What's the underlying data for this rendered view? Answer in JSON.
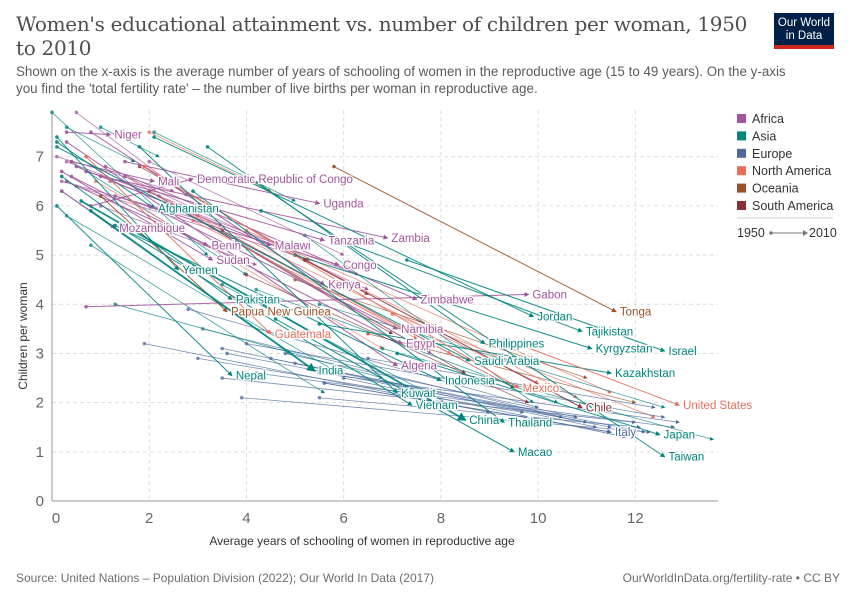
{
  "header": {
    "title": "Women's educational attainment vs. number of children per woman, 1950 to 2010",
    "subtitle": "Shown on the x-axis is the average number of years of schooling of women in the reproductive age (15 to 49 years). On the y-axis you find the 'total fertility rate' – the number of live births per woman in reproductive age.",
    "logo_line1": "Our World",
    "logo_line2": "in Data"
  },
  "footer": {
    "source": "Source: United Nations – Population Division (2022); Our World In Data (2017)",
    "link": "OurWorldInData.org/fertility-rate • CC BY"
  },
  "colors": {
    "Africa": "#a2559c",
    "Asia": "#00847e",
    "Europe": "#4c6a9c",
    "North America": "#e56e5a",
    "Oceania": "#9a5129",
    "South America": "#883039"
  },
  "chart_data": {
    "type": "scatter",
    "variant": "arrow-connected (start year → end year)",
    "title": "Women's educational attainment vs. number of children per woman, 1950 to 2010",
    "xlabel": "Average years of schooling of women in reproductive age",
    "ylabel": "Children per woman",
    "xlim": [
      0,
      13.7
    ],
    "ylim": [
      0,
      7.95
    ],
    "x_ticks": [
      0,
      2,
      4,
      6,
      8,
      10,
      12
    ],
    "y_ticks": [
      0,
      1,
      2,
      3,
      4,
      5,
      6,
      7
    ],
    "grid": true,
    "legend": {
      "position": "right",
      "entries": [
        "Africa",
        "Asia",
        "Europe",
        "North America",
        "Oceania",
        "South America"
      ],
      "time_start": "1950",
      "time_end": "2010"
    },
    "labeled_series": [
      {
        "name": "Niger",
        "region": "Africa",
        "x": [
          0.3,
          1.2
        ],
        "y": [
          7.5,
          7.45
        ]
      },
      {
        "name": "Mali",
        "region": "Africa",
        "x": [
          0.4,
          2.1
        ],
        "y": [
          6.9,
          6.5
        ]
      },
      {
        "name": "Democratic Republic of Congo",
        "region": "Africa",
        "x": [
          0.8,
          2.9
        ],
        "y": [
          6.0,
          6.55
        ]
      },
      {
        "name": "Uganda",
        "region": "Africa",
        "x": [
          1.5,
          5.5
        ],
        "y": [
          6.9,
          6.05
        ]
      },
      {
        "name": "Afghanistan",
        "region": "Asia",
        "x": [
          0.1,
          2.1
        ],
        "y": [
          7.3,
          5.95
        ]
      },
      {
        "name": "Mozambique",
        "region": "Africa",
        "x": [
          0.2,
          1.3
        ],
        "y": [
          6.3,
          5.55
        ]
      },
      {
        "name": "Benin",
        "region": "Africa",
        "x": [
          0.3,
          3.2
        ],
        "y": [
          6.5,
          5.2
        ]
      },
      {
        "name": "Malawi",
        "region": "Africa",
        "x": [
          0.5,
          4.5
        ],
        "y": [
          6.8,
          5.2
        ]
      },
      {
        "name": "Tanzania",
        "region": "Africa",
        "x": [
          0.7,
          5.6
        ],
        "y": [
          6.7,
          5.3
        ]
      },
      {
        "name": "Zambia",
        "region": "Africa",
        "x": [
          1.0,
          6.9
        ],
        "y": [
          6.6,
          5.35
        ]
      },
      {
        "name": "Sudan",
        "region": "Africa",
        "x": [
          0.2,
          3.3
        ],
        "y": [
          6.7,
          4.9
        ]
      },
      {
        "name": "Yemen",
        "region": "Asia",
        "x": [
          0.1,
          2.6
        ],
        "y": [
          7.4,
          4.7
        ]
      },
      {
        "name": "Congo",
        "region": "Africa",
        "x": [
          1.3,
          5.9
        ],
        "y": [
          6.2,
          4.8
        ]
      },
      {
        "name": "Kenya",
        "region": "Africa",
        "x": [
          0.8,
          5.6
        ],
        "y": [
          7.5,
          4.4
        ]
      },
      {
        "name": "Pakistan",
        "region": "Asia",
        "x": [
          0.2,
          3.7
        ],
        "y": [
          6.6,
          4.1
        ]
      },
      {
        "name": "Gabon",
        "region": "Africa",
        "x": [
          0.7,
          9.8
        ],
        "y": [
          3.95,
          4.2
        ]
      },
      {
        "name": "Zimbabwe",
        "region": "Africa",
        "x": [
          1.1,
          7.5
        ],
        "y": [
          6.8,
          4.1
        ]
      },
      {
        "name": "Tonga",
        "region": "Oceania",
        "x": [
          5.8,
          11.6
        ],
        "y": [
          6.8,
          3.85
        ]
      },
      {
        "name": "Papua New Guinea",
        "region": "Oceania",
        "x": [
          1.0,
          3.6
        ],
        "y": [
          6.2,
          3.85
        ]
      },
      {
        "name": "Jordan",
        "region": "Asia",
        "x": [
          2.1,
          9.9
        ],
        "y": [
          7.4,
          3.75
        ]
      },
      {
        "name": "Namibia",
        "region": "Africa",
        "x": [
          2.0,
          7.1
        ],
        "y": [
          6.0,
          3.5
        ]
      },
      {
        "name": "Tajikistan",
        "region": "Asia",
        "x": [
          4.3,
          10.9
        ],
        "y": [
          5.9,
          3.45
        ]
      },
      {
        "name": "Guatemala",
        "region": "North America",
        "x": [
          0.7,
          4.5
        ],
        "y": [
          7.0,
          3.4
        ]
      },
      {
        "name": "Philippines",
        "region": "Asia",
        "x": [
          3.2,
          8.9
        ],
        "y": [
          7.2,
          3.2
        ]
      },
      {
        "name": "Egypt",
        "region": "Africa",
        "x": [
          0.4,
          7.2
        ],
        "y": [
          6.6,
          3.2
        ]
      },
      {
        "name": "Kyrgyzstan",
        "region": "Asia",
        "x": [
          5.0,
          11.1
        ],
        "y": [
          5.0,
          3.1
        ]
      },
      {
        "name": "Israel",
        "region": "Asia",
        "x": [
          7.3,
          12.6
        ],
        "y": [
          4.9,
          3.05
        ]
      },
      {
        "name": "Saudi Arabia",
        "region": "Asia",
        "x": [
          0.1,
          8.6
        ],
        "y": [
          7.2,
          2.85
        ]
      },
      {
        "name": "Algeria",
        "region": "Africa",
        "x": [
          0.3,
          7.1
        ],
        "y": [
          7.3,
          2.75
        ]
      },
      {
        "name": "India",
        "region": "Asia",
        "x": [
          0.8,
          5.4
        ],
        "y": [
          5.9,
          2.65
        ]
      },
      {
        "name": "Kazakhstan",
        "region": "Asia",
        "x": [
          5.5,
          11.5
        ],
        "y": [
          3.6,
          2.6
        ]
      },
      {
        "name": "Nepal",
        "region": "Asia",
        "x": [
          0.1,
          3.7
        ],
        "y": [
          6.0,
          2.55
        ]
      },
      {
        "name": "Indonesia",
        "region": "Asia",
        "x": [
          1.3,
          8.0
        ],
        "y": [
          5.6,
          2.45
        ]
      },
      {
        "name": "Mexico",
        "region": "North America",
        "x": [
          1.9,
          9.6
        ],
        "y": [
          6.8,
          2.3
        ]
      },
      {
        "name": "Kuwait",
        "region": "Asia",
        "x": [
          1.8,
          7.1
        ],
        "y": [
          7.2,
          2.2
        ]
      },
      {
        "name": "United States",
        "region": "North America",
        "x": [
          9.3,
          12.9
        ],
        "y": [
          3.3,
          1.95
        ]
      },
      {
        "name": "Vietnam",
        "region": "Asia",
        "x": [
          1.5,
          7.4
        ],
        "y": [
          5.5,
          1.95
        ]
      },
      {
        "name": "Chile",
        "region": "South America",
        "x": [
          5.2,
          10.9
        ],
        "y": [
          4.9,
          1.9
        ]
      },
      {
        "name": "China",
        "region": "Asia",
        "x": [
          0.6,
          8.5
        ],
        "y": [
          6.1,
          1.65
        ]
      },
      {
        "name": "Thailand",
        "region": "Asia",
        "x": [
          2.9,
          9.3
        ],
        "y": [
          6.3,
          1.6
        ]
      },
      {
        "name": "Italy",
        "region": "Europe",
        "x": [
          5.6,
          11.5
        ],
        "y": [
          2.4,
          1.4
        ]
      },
      {
        "name": "Japan",
        "region": "Asia",
        "x": [
          7.1,
          12.5
        ],
        "y": [
          3.0,
          1.35
        ]
      },
      {
        "name": "Macao",
        "region": "Asia",
        "x": [
          4.6,
          9.5
        ],
        "y": [
          3.7,
          1.0
        ]
      },
      {
        "name": "Taiwan",
        "region": "Asia",
        "x": [
          4.0,
          12.6
        ],
        "y": [
          6.6,
          0.9
        ]
      }
    ],
    "unlabeled_series_note": "Dozens of additional unlabeled country arrows (1950→2010) in the same regional colors fill the plot; representative approximations below.",
    "unlabeled_series": [
      {
        "region": "Asia",
        "x": [
          0.0,
          3.2
        ],
        "y": [
          7.9,
          5.0
        ]
      },
      {
        "region": "Africa",
        "x": [
          0.5,
          2.8
        ],
        "y": [
          7.9,
          6.2
        ]
      },
      {
        "region": "Asia",
        "x": [
          0.3,
          1.7
        ],
        "y": [
          7.6,
          6.9
        ]
      },
      {
        "region": "Asia",
        "x": [
          1.0,
          2.2
        ],
        "y": [
          7.6,
          7.0
        ]
      },
      {
        "region": "North America",
        "x": [
          2.0,
          4.5
        ],
        "y": [
          7.5,
          6.3
        ]
      },
      {
        "region": "Asia",
        "x": [
          2.1,
          5.0
        ],
        "y": [
          7.5,
          6.1
        ]
      },
      {
        "region": "Africa",
        "x": [
          0.1,
          2.5
        ],
        "y": [
          7.0,
          6.3
        ]
      },
      {
        "region": "Africa",
        "x": [
          0.3,
          3.0
        ],
        "y": [
          6.9,
          5.9
        ]
      },
      {
        "region": "Africa",
        "x": [
          0.2,
          3.5
        ],
        "y": [
          6.5,
          5.6
        ]
      },
      {
        "region": "Asia",
        "x": [
          0.4,
          4.0
        ],
        "y": [
          6.9,
          4.6
        ]
      },
      {
        "region": "Asia",
        "x": [
          0.2,
          4.9
        ],
        "y": [
          6.3,
          3.0
        ]
      },
      {
        "region": "Asia",
        "x": [
          0.8,
          5.6
        ],
        "y": [
          5.2,
          2.2
        ]
      },
      {
        "region": "Asia",
        "x": [
          0.3,
          5.9
        ],
        "y": [
          5.8,
          2.6
        ]
      },
      {
        "region": "North America",
        "x": [
          0.9,
          6.8
        ],
        "y": [
          6.5,
          3.1
        ]
      },
      {
        "region": "North America",
        "x": [
          1.5,
          7.5
        ],
        "y": [
          6.6,
          3.3
        ]
      },
      {
        "region": "South America",
        "x": [
          2.0,
          7.0
        ],
        "y": [
          6.3,
          3.4
        ]
      },
      {
        "region": "South America",
        "x": [
          2.5,
          8.5
        ],
        "y": [
          6.0,
          2.6
        ]
      },
      {
        "region": "South America",
        "x": [
          3.5,
          9.5
        ],
        "y": [
          5.5,
          2.3
        ]
      },
      {
        "region": "North America",
        "x": [
          3.0,
          10.0
        ],
        "y": [
          5.8,
          2.4
        ]
      },
      {
        "region": "North America",
        "x": [
          4.0,
          11.5
        ],
        "y": [
          5.5,
          2.2
        ]
      },
      {
        "region": "Oceania",
        "x": [
          5.0,
          11.0
        ],
        "y": [
          4.5,
          2.5
        ]
      },
      {
        "region": "Oceania",
        "x": [
          6.5,
          12.0
        ],
        "y": [
          3.4,
          2.0
        ]
      },
      {
        "region": "North America",
        "x": [
          7.0,
          12.4
        ],
        "y": [
          3.8,
          1.7
        ]
      },
      {
        "region": "Europe",
        "x": [
          1.9,
          9.0
        ],
        "y": [
          3.2,
          1.8
        ]
      },
      {
        "region": "Europe",
        "x": [
          2.8,
          10.0
        ],
        "y": [
          3.9,
          1.9
        ]
      },
      {
        "region": "Europe",
        "x": [
          3.1,
          10.5
        ],
        "y": [
          3.5,
          1.7
        ]
      },
      {
        "region": "Europe",
        "x": [
          3.5,
          11.0
        ],
        "y": [
          3.1,
          1.6
        ]
      },
      {
        "region": "Europe",
        "x": [
          3.6,
          11.5
        ],
        "y": [
          3.0,
          1.5
        ]
      },
      {
        "region": "Europe",
        "x": [
          3.5,
          12.0
        ],
        "y": [
          2.5,
          1.6
        ]
      },
      {
        "region": "Europe",
        "x": [
          3.9,
          12.3
        ],
        "y": [
          2.1,
          1.4
        ]
      },
      {
        "region": "Europe",
        "x": [
          4.0,
          12.6
        ],
        "y": [
          3.2,
          1.7
        ]
      },
      {
        "region": "Europe",
        "x": [
          4.2,
          12.8
        ],
        "y": [
          2.6,
          1.5
        ]
      },
      {
        "region": "Europe",
        "x": [
          4.5,
          11.2
        ],
        "y": [
          2.9,
          1.5
        ]
      },
      {
        "region": "Europe",
        "x": [
          5.0,
          12.2
        ],
        "y": [
          2.8,
          1.4
        ]
      },
      {
        "region": "Europe",
        "x": [
          5.5,
          12.9
        ],
        "y": [
          2.6,
          1.6
        ]
      },
      {
        "region": "Europe",
        "x": [
          6.0,
          11.8
        ],
        "y": [
          2.5,
          1.3
        ]
      },
      {
        "region": "Europe",
        "x": [
          3.0,
          9.7
        ],
        "y": [
          2.9,
          1.8
        ]
      },
      {
        "region": "Europe",
        "x": [
          4.8,
          10.8
        ],
        "y": [
          3.0,
          1.7
        ]
      },
      {
        "region": "Europe",
        "x": [
          5.5,
          12.1
        ],
        "y": [
          2.1,
          1.5
        ]
      },
      {
        "region": "Europe",
        "x": [
          6.5,
          12.4
        ],
        "y": [
          2.9,
          1.9
        ]
      },
      {
        "region": "Asia",
        "x": [
          6.8,
          13.6
        ],
        "y": [
          3.1,
          1.25
        ]
      },
      {
        "region": "Asia",
        "x": [
          5.2,
          9.9
        ],
        "y": [
          5.4,
          2.0
        ]
      },
      {
        "region": "Asia",
        "x": [
          4.2,
          10.4
        ],
        "y": [
          4.3,
          2.0
        ]
      },
      {
        "region": "Asia",
        "x": [
          3.5,
          8.3
        ],
        "y": [
          4.4,
          1.9
        ]
      },
      {
        "region": "Asia",
        "x": [
          1.3,
          6.8
        ],
        "y": [
          4.0,
          2.5
        ]
      },
      {
        "region": "Africa",
        "x": [
          1.5,
          6.5
        ],
        "y": [
          6.6,
          4.3
        ]
      },
      {
        "region": "Africa",
        "x": [
          1.2,
          6.3
        ],
        "y": [
          6.5,
          4.6
        ]
      },
      {
        "region": "Africa",
        "x": [
          2.2,
          7.8
        ],
        "y": [
          6.2,
          3.0
        ]
      },
      {
        "region": "Africa",
        "x": [
          0.5,
          5.3
        ],
        "y": [
          6.4,
          4.9
        ]
      },
      {
        "region": "Africa",
        "x": [
          1.0,
          4.2
        ],
        "y": [
          6.0,
          4.8
        ]
      },
      {
        "region": "Africa",
        "x": [
          2.0,
          6.0
        ],
        "y": [
          6.9,
          5.0
        ]
      },
      {
        "region": "South America",
        "x": [
          1.8,
          6.5
        ],
        "y": [
          6.8,
          4.2
        ]
      },
      {
        "region": "North America",
        "x": [
          2.9,
          8.2
        ],
        "y": [
          5.7,
          3.0
        ]
      },
      {
        "region": "South America",
        "x": [
          4.0,
          9.8
        ],
        "y": [
          4.6,
          2.0
        ]
      },
      {
        "region": "North America",
        "x": [
          5.0,
          10.8
        ],
        "y": [
          5.0,
          2.1
        ]
      },
      {
        "region": "Asia",
        "x": [
          5.5,
          12.6
        ],
        "y": [
          4.0,
          1.9
        ]
      }
    ]
  }
}
